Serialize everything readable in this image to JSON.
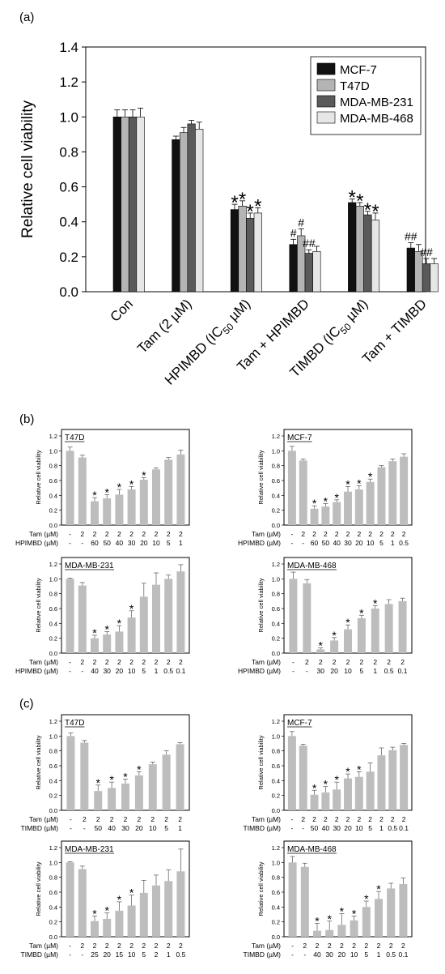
{
  "panel_labels": {
    "a": "(a)",
    "b": "(b)",
    "c": "(c)"
  },
  "colors": {
    "mcf7": "#111111",
    "t47d": "#b4b4b4",
    "mda231": "#5a5a5a",
    "mda468": "#e6e6e6",
    "small_bar": "#bdbdbd"
  },
  "chart_data": [
    {
      "id": "a",
      "type": "bar",
      "ylabel": "Relative cell viability",
      "ylim": [
        0,
        1.4
      ],
      "yticks": [
        "0.0",
        "0.2",
        "0.4",
        "0.6",
        "0.8",
        "1.0",
        "1.2",
        "1.4"
      ],
      "categories": [
        "Con",
        "Tam (2 µM)",
        "HPIMBD (IC₅₀ µM)",
        "Tam + HPIMBD",
        "TIMBD (IC₅₀ µM)",
        "Tam + TIMBD"
      ],
      "legend_position": "top-right",
      "series": [
        {
          "name": "MCF-7",
          "color_key": "mcf7",
          "values": [
            1.0,
            0.87,
            0.47,
            0.27,
            0.51,
            0.25
          ],
          "errors": [
            0.04,
            0.02,
            0.03,
            0.03,
            0.02,
            0.03
          ],
          "marks": [
            "",
            "",
            "*",
            "#",
            "*",
            "##"
          ]
        },
        {
          "name": "T47D",
          "color_key": "t47d",
          "values": [
            1.0,
            0.91,
            0.49,
            0.32,
            0.49,
            0.23
          ],
          "errors": [
            0.04,
            0.03,
            0.03,
            0.04,
            0.02,
            0.04
          ],
          "marks": [
            "",
            "",
            "*",
            "#",
            "*",
            ""
          ]
        },
        {
          "name": "MDA-MB-231",
          "color_key": "mda231",
          "values": [
            1.0,
            0.96,
            0.42,
            0.22,
            0.44,
            0.16
          ],
          "errors": [
            0.04,
            0.02,
            0.03,
            0.02,
            0.02,
            0.03
          ],
          "marks": [
            "",
            "",
            "*",
            "##",
            "*",
            "##"
          ]
        },
        {
          "name": "MDA-MB-468",
          "color_key": "mda468",
          "values": [
            1.0,
            0.93,
            0.45,
            0.23,
            0.41,
            0.16
          ],
          "errors": [
            0.05,
            0.04,
            0.03,
            0.03,
            0.04,
            0.03
          ],
          "marks": [
            "",
            "",
            "*",
            "",
            "*",
            ""
          ]
        }
      ]
    },
    {
      "id": "b1",
      "type": "bar",
      "title": "T47D",
      "ylabel": "Relative cell viability",
      "ylim": [
        0,
        1.2
      ],
      "yticks": [
        "0.0",
        "0.2",
        "0.4",
        "0.6",
        "0.8",
        "1.0",
        "1.2"
      ],
      "row_labels": [
        "Tam (µM)",
        "HPIMBD (µM)"
      ],
      "tam": [
        "-",
        "2",
        "2",
        "2",
        "2",
        "2",
        "2",
        "2",
        "2",
        "2"
      ],
      "drug": [
        "-",
        "-",
        "60",
        "50",
        "40",
        "30",
        "20",
        "10",
        "5",
        "1"
      ],
      "values": [
        1.0,
        0.91,
        0.32,
        0.36,
        0.41,
        0.48,
        0.61,
        0.75,
        0.88,
        0.95
      ],
      "errors": [
        0.05,
        0.03,
        0.05,
        0.05,
        0.07,
        0.04,
        0.03,
        0.02,
        0.03,
        0.06
      ],
      "significant": [
        false,
        false,
        true,
        true,
        true,
        true,
        true,
        false,
        false,
        false
      ]
    },
    {
      "id": "b2",
      "type": "bar",
      "title": "MCF-7",
      "ylabel": "Relative cell viability",
      "ylim": [
        0,
        1.2
      ],
      "yticks": [
        "0.0",
        "0.2",
        "0.4",
        "0.6",
        "0.8",
        "1.0",
        "1.2"
      ],
      "row_labels": [
        "Tam (µM)",
        "HPIMBD (µM)"
      ],
      "tam": [
        "-",
        "2",
        "2",
        "2",
        "2",
        "2",
        "2",
        "2",
        "2",
        "2",
        "2"
      ],
      "drug": [
        "-",
        "-",
        "60",
        "50",
        "40",
        "30",
        "20",
        "10",
        "5",
        "1",
        "0.5"
      ],
      "values": [
        1.0,
        0.87,
        0.22,
        0.25,
        0.31,
        0.45,
        0.48,
        0.58,
        0.78,
        0.86,
        0.92
      ],
      "errors": [
        0.06,
        0.02,
        0.04,
        0.04,
        0.03,
        0.07,
        0.05,
        0.04,
        0.02,
        0.03,
        0.04
      ],
      "significant": [
        false,
        false,
        true,
        true,
        true,
        true,
        true,
        true,
        false,
        false,
        false
      ]
    },
    {
      "id": "b3",
      "type": "bar",
      "title": "MDA-MB-231",
      "ylabel": "Relative cell viability",
      "ylim": [
        0,
        1.2
      ],
      "yticks": [
        "0.0",
        "0.2",
        "0.4",
        "0.6",
        "0.8",
        "1.0",
        "1.2"
      ],
      "row_labels": [
        "Tam (µM)",
        "HPIMBD (µM)"
      ],
      "tam": [
        "-",
        "2",
        "2",
        "2",
        "2",
        "2",
        "2",
        "2",
        "2",
        "2"
      ],
      "drug": [
        "-",
        "-",
        "40",
        "30",
        "20",
        "10",
        "5",
        "1",
        "0.5",
        "0.1"
      ],
      "values": [
        1.0,
        0.91,
        0.2,
        0.25,
        0.29,
        0.48,
        0.76,
        0.92,
        1.0,
        1.1
      ],
      "errors": [
        0.01,
        0.04,
        0.04,
        0.04,
        0.08,
        0.09,
        0.18,
        0.16,
        0.05,
        0.09
      ],
      "significant": [
        false,
        false,
        true,
        true,
        true,
        true,
        false,
        false,
        false,
        false
      ]
    },
    {
      "id": "b4",
      "type": "bar",
      "title": "MDA-MB-468",
      "ylabel": "Relative cell viability",
      "ylim": [
        0,
        1.2
      ],
      "yticks": [
        "0.0",
        "0.2",
        "0.4",
        "0.6",
        "0.8",
        "1.0",
        "1.2"
      ],
      "row_labels": [
        "Tam (µM)",
        "HPIMBD (µM)"
      ],
      "tam": [
        "-",
        "2",
        "2",
        "2",
        "2",
        "2",
        "2",
        "2",
        "2"
      ],
      "drug": [
        "-",
        "-",
        "30",
        "20",
        "10",
        "5",
        "1",
        "0.5",
        "0.1"
      ],
      "values": [
        1.0,
        0.94,
        0.05,
        0.17,
        0.32,
        0.47,
        0.6,
        0.66,
        0.7
      ],
      "errors": [
        0.09,
        0.05,
        0.02,
        0.04,
        0.06,
        0.04,
        0.04,
        0.06,
        0.04
      ],
      "significant": [
        false,
        false,
        true,
        true,
        true,
        true,
        true,
        false,
        false
      ]
    },
    {
      "id": "c1",
      "type": "bar",
      "title": "T47D",
      "ylabel": "Relative cell viability",
      "ylim": [
        0,
        1.2
      ],
      "yticks": [
        "0.0",
        "0.2",
        "0.4",
        "0.6",
        "0.8",
        "1.0",
        "1.2"
      ],
      "row_labels": [
        "Tam (µM)",
        "TIMBD (µM)"
      ],
      "tam": [
        "-",
        "2",
        "2",
        "2",
        "2",
        "2",
        "2",
        "2",
        "2"
      ],
      "drug": [
        "-",
        "-",
        "50",
        "40",
        "30",
        "20",
        "10",
        "5",
        "1"
      ],
      "values": [
        1.0,
        0.91,
        0.26,
        0.3,
        0.36,
        0.47,
        0.62,
        0.75,
        0.89
      ],
      "errors": [
        0.04,
        0.03,
        0.08,
        0.08,
        0.06,
        0.05,
        0.03,
        0.05,
        0.02
      ],
      "significant": [
        false,
        false,
        true,
        true,
        true,
        true,
        false,
        false,
        false
      ]
    },
    {
      "id": "c2",
      "type": "bar",
      "title": "MCF-7",
      "ylabel": "Relative cell viability",
      "ylim": [
        0,
        1.2
      ],
      "yticks": [
        "0.0",
        "0.2",
        "0.4",
        "0.6",
        "0.8",
        "1.0",
        "1.2"
      ],
      "row_labels": [
        "Tam (µM)",
        "TIMBD (µM)"
      ],
      "tam": [
        "-",
        "2",
        "2",
        "2",
        "2",
        "2",
        "2",
        "2",
        "2",
        "2",
        "2"
      ],
      "drug": [
        "-",
        "-",
        "50",
        "40",
        "30",
        "20",
        "10",
        "5",
        "1",
        "0.5",
        "0.1"
      ],
      "values": [
        1.0,
        0.87,
        0.21,
        0.24,
        0.28,
        0.43,
        0.45,
        0.52,
        0.74,
        0.81,
        0.88
      ],
      "errors": [
        0.06,
        0.02,
        0.06,
        0.08,
        0.1,
        0.06,
        0.07,
        0.12,
        0.1,
        0.04,
        0.02
      ],
      "significant": [
        false,
        false,
        true,
        true,
        true,
        true,
        true,
        false,
        false,
        false,
        false
      ]
    },
    {
      "id": "c3",
      "type": "bar",
      "title": "MDA-MB-231",
      "ylabel": "Relative cell viability",
      "ylim": [
        0,
        1.2
      ],
      "yticks": [
        "0.0",
        "0.2",
        "0.4",
        "0.6",
        "0.8",
        "1.0",
        "1.2"
      ],
      "row_labels": [
        "Tam (µM)",
        "TIMBD (µM)"
      ],
      "tam": [
        "-",
        "2",
        "2",
        "2",
        "2",
        "2",
        "2",
        "2",
        "2",
        "2"
      ],
      "drug": [
        "-",
        "-",
        "25",
        "20",
        "15",
        "10",
        "5",
        "2",
        "1",
        "0.5"
      ],
      "values": [
        1.0,
        0.91,
        0.21,
        0.24,
        0.35,
        0.42,
        0.59,
        0.69,
        0.75,
        0.88
      ],
      "errors": [
        0.01,
        0.04,
        0.07,
        0.08,
        0.12,
        0.14,
        0.17,
        0.14,
        0.15,
        0.3
      ],
      "significant": [
        false,
        false,
        true,
        true,
        true,
        true,
        false,
        false,
        false,
        false
      ]
    },
    {
      "id": "c4",
      "type": "bar",
      "title": "MDA-MB-468",
      "ylabel": "Relative cell viability",
      "ylim": [
        0,
        1.2
      ],
      "yticks": [
        "0.0",
        "0.2",
        "0.4",
        "0.6",
        "0.8",
        "1.0",
        "1.2"
      ],
      "row_labels": [
        "Tam (µM)",
        "TIMBD (µM)"
      ],
      "tam": [
        "-",
        "2",
        "2",
        "2",
        "2",
        "2",
        "2",
        "2",
        "2",
        "2"
      ],
      "drug": [
        "-",
        "-",
        "40",
        "30",
        "20",
        "10",
        "5",
        "1",
        "0.5",
        "0.1"
      ],
      "values": [
        1.0,
        0.94,
        0.08,
        0.09,
        0.16,
        0.22,
        0.4,
        0.51,
        0.65,
        0.71
      ],
      "errors": [
        0.08,
        0.05,
        0.1,
        0.12,
        0.15,
        0.06,
        0.08,
        0.1,
        0.07,
        0.08
      ],
      "significant": [
        false,
        false,
        true,
        true,
        true,
        true,
        true,
        true,
        false,
        false
      ]
    }
  ]
}
